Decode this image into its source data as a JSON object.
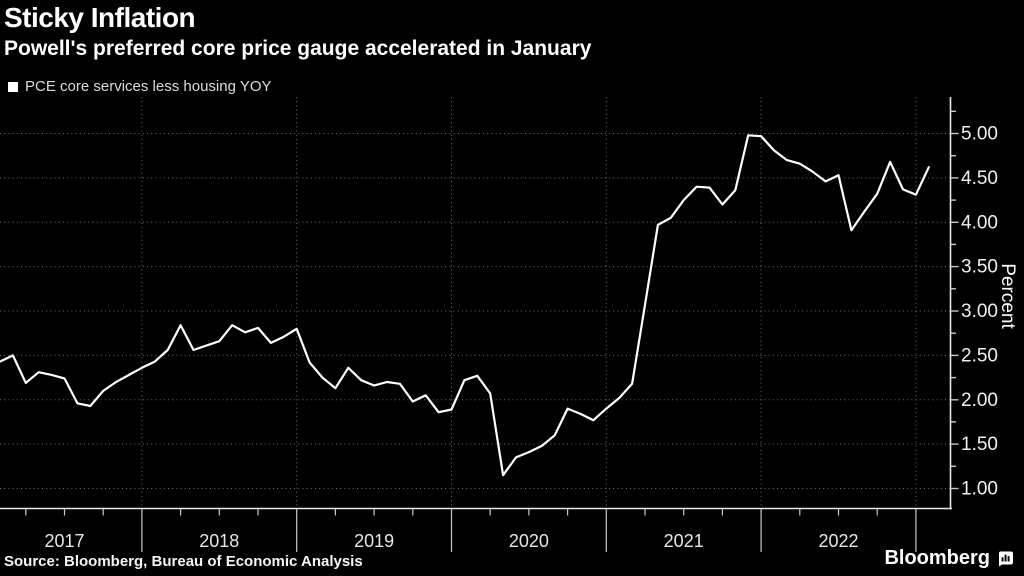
{
  "header": {
    "title": "Sticky Inflation",
    "subtitle": "Powell's preferred core price gauge accelerated in January"
  },
  "legend": {
    "label": "PCE core services less housing YOY",
    "swatch_color": "#ffffff"
  },
  "chart_data": {
    "type": "line",
    "title": "Sticky Inflation",
    "subtitle": "Powell's preferred core price gauge accelerated in January",
    "frequency": "monthly",
    "x_start": "Jan 2017",
    "x_end": "Jan 2023",
    "x_tick_labels": [
      "2017",
      "2018",
      "2019",
      "2020",
      "2021",
      "2022"
    ],
    "ylabel": "Percent",
    "y_axis": {
      "min": 0.75,
      "max": 5.4,
      "label_step": 0.5,
      "minor_tick_step": 0.25,
      "tick_labels": [
        "1.00",
        "1.50",
        "2.00",
        "2.50",
        "3.00",
        "3.50",
        "4.00",
        "4.50",
        "5.00"
      ]
    },
    "grid": "dotted",
    "legend_position": "top-left",
    "series": [
      {
        "name": "PCE core services less housing YOY",
        "color": "#ffffff",
        "values": [
          2.43,
          2.5,
          2.19,
          2.31,
          2.28,
          2.24,
          1.96,
          1.93,
          2.1,
          2.2,
          2.28,
          2.36,
          2.43,
          2.56,
          2.84,
          2.56,
          2.61,
          2.66,
          2.84,
          2.76,
          2.81,
          2.64,
          2.71,
          2.8,
          2.42,
          2.25,
          2.13,
          2.36,
          2.22,
          2.16,
          2.2,
          2.18,
          1.98,
          2.05,
          1.86,
          1.89,
          2.22,
          2.27,
          2.07,
          1.15,
          1.35,
          1.41,
          1.48,
          1.6,
          1.9,
          1.84,
          1.77,
          1.9,
          2.02,
          2.18,
          3.07,
          3.97,
          4.05,
          4.25,
          4.4,
          4.39,
          4.2,
          4.36,
          4.98,
          4.97,
          4.81,
          4.7,
          4.66,
          4.57,
          4.46,
          4.53,
          3.91,
          4.12,
          4.32,
          4.68,
          4.37,
          4.31,
          4.62
        ]
      }
    ]
  },
  "footer": {
    "source": "Source: Bloomberg, Bureau of Economic Analysis",
    "brand": "Bloomberg"
  },
  "colors": {
    "background": "#000000",
    "line": "#ffffff",
    "grid": "#6f6f6f",
    "axis": "#e8e8e8",
    "tick": "#c9c9c9",
    "axis_text": "#f0f0f0",
    "year_text": "#e6e6e6"
  }
}
